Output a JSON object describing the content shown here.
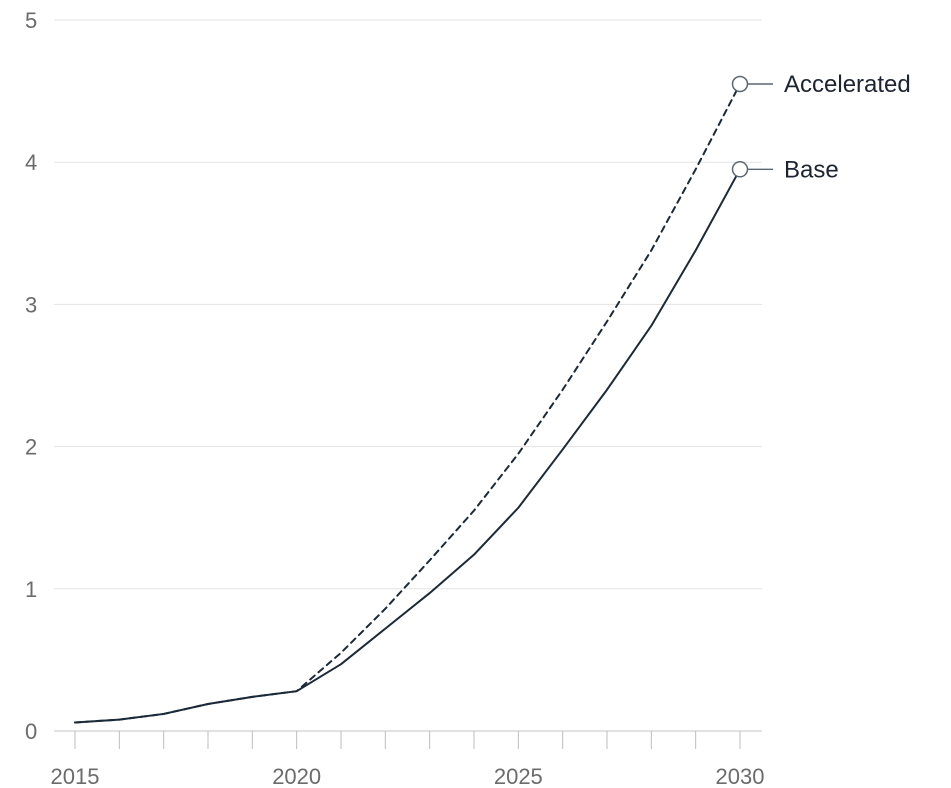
{
  "chart_data": {
    "type": "line",
    "x": [
      2015,
      2016,
      2017,
      2018,
      2019,
      2020,
      2021,
      2022,
      2023,
      2024,
      2025,
      2026,
      2027,
      2028,
      2029,
      2030
    ],
    "series": [
      {
        "name": "Accelerated",
        "values": [
          0.06,
          0.08,
          0.12,
          0.19,
          0.24,
          0.28,
          0.55,
          0.86,
          1.2,
          1.55,
          1.95,
          2.4,
          2.88,
          3.38,
          3.95,
          4.55
        ],
        "dashed": true
      },
      {
        "name": "Base",
        "values": [
          0.06,
          0.08,
          0.12,
          0.19,
          0.24,
          0.28,
          0.47,
          0.72,
          0.97,
          1.24,
          1.57,
          1.98,
          2.4,
          2.85,
          3.38,
          3.95
        ],
        "dashed": false
      }
    ],
    "x_tick_labels": [
      "2015",
      "2020",
      "2025",
      "2030"
    ],
    "y_tick_labels": [
      "0",
      "1",
      "2",
      "3",
      "4",
      "5"
    ],
    "xlim": [
      2015,
      2030
    ],
    "ylim": [
      0,
      5
    ],
    "title": "",
    "xlabel": "",
    "ylabel": "",
    "grid": "horizontal",
    "legend": "inline-right",
    "colors": {
      "line": "#1b2a38",
      "grid": "#e3e3e3",
      "axis": "#cfcfcf",
      "tick_label": "#6b6b6b"
    }
  }
}
